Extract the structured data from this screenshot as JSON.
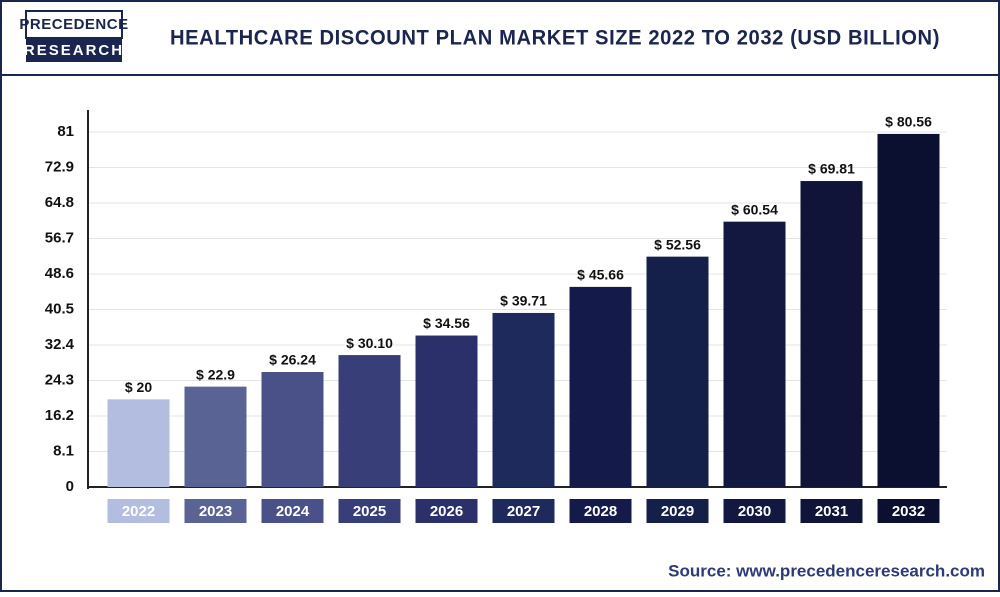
{
  "chart_data": {
    "type": "bar",
    "logo_top": "PRECEDENCE",
    "logo_bottom": "RESEARCH",
    "title": "HEALTHCARE DISCOUNT PLAN MARKET SIZE 2022 TO 2032 (USD BILLION)",
    "categories": [
      "2022",
      "2023",
      "2024",
      "2025",
      "2026",
      "2027",
      "2028",
      "2029",
      "2030",
      "2031",
      "2032"
    ],
    "values": [
      20,
      22.9,
      26.24,
      30.1,
      34.56,
      39.71,
      45.66,
      52.56,
      60.54,
      69.81,
      80.56
    ],
    "value_labels": [
      "$ 20",
      "$ 22.9",
      "$ 26.24",
      "$ 30.10",
      "$ 34.56",
      "$ 39.71",
      "$ 45.66",
      "$ 52.56",
      "$ 60.54",
      "$ 69.81",
      "$ 80.56"
    ],
    "colors": [
      "#b3bde0",
      "#5a6494",
      "#4a5188",
      "#383f78",
      "#2b306a",
      "#1f2a5c",
      "#141a4a",
      "#15204a",
      "#121840",
      "#0f1438",
      "#0c1030"
    ],
    "ylim": [
      0,
      81
    ],
    "yticks": [
      0,
      8.1,
      16.2,
      24.3,
      32.4,
      40.5,
      48.6,
      56.7,
      64.8,
      72.9,
      81
    ],
    "grid": true,
    "source": "Source: www.precedenceresearch.com"
  }
}
